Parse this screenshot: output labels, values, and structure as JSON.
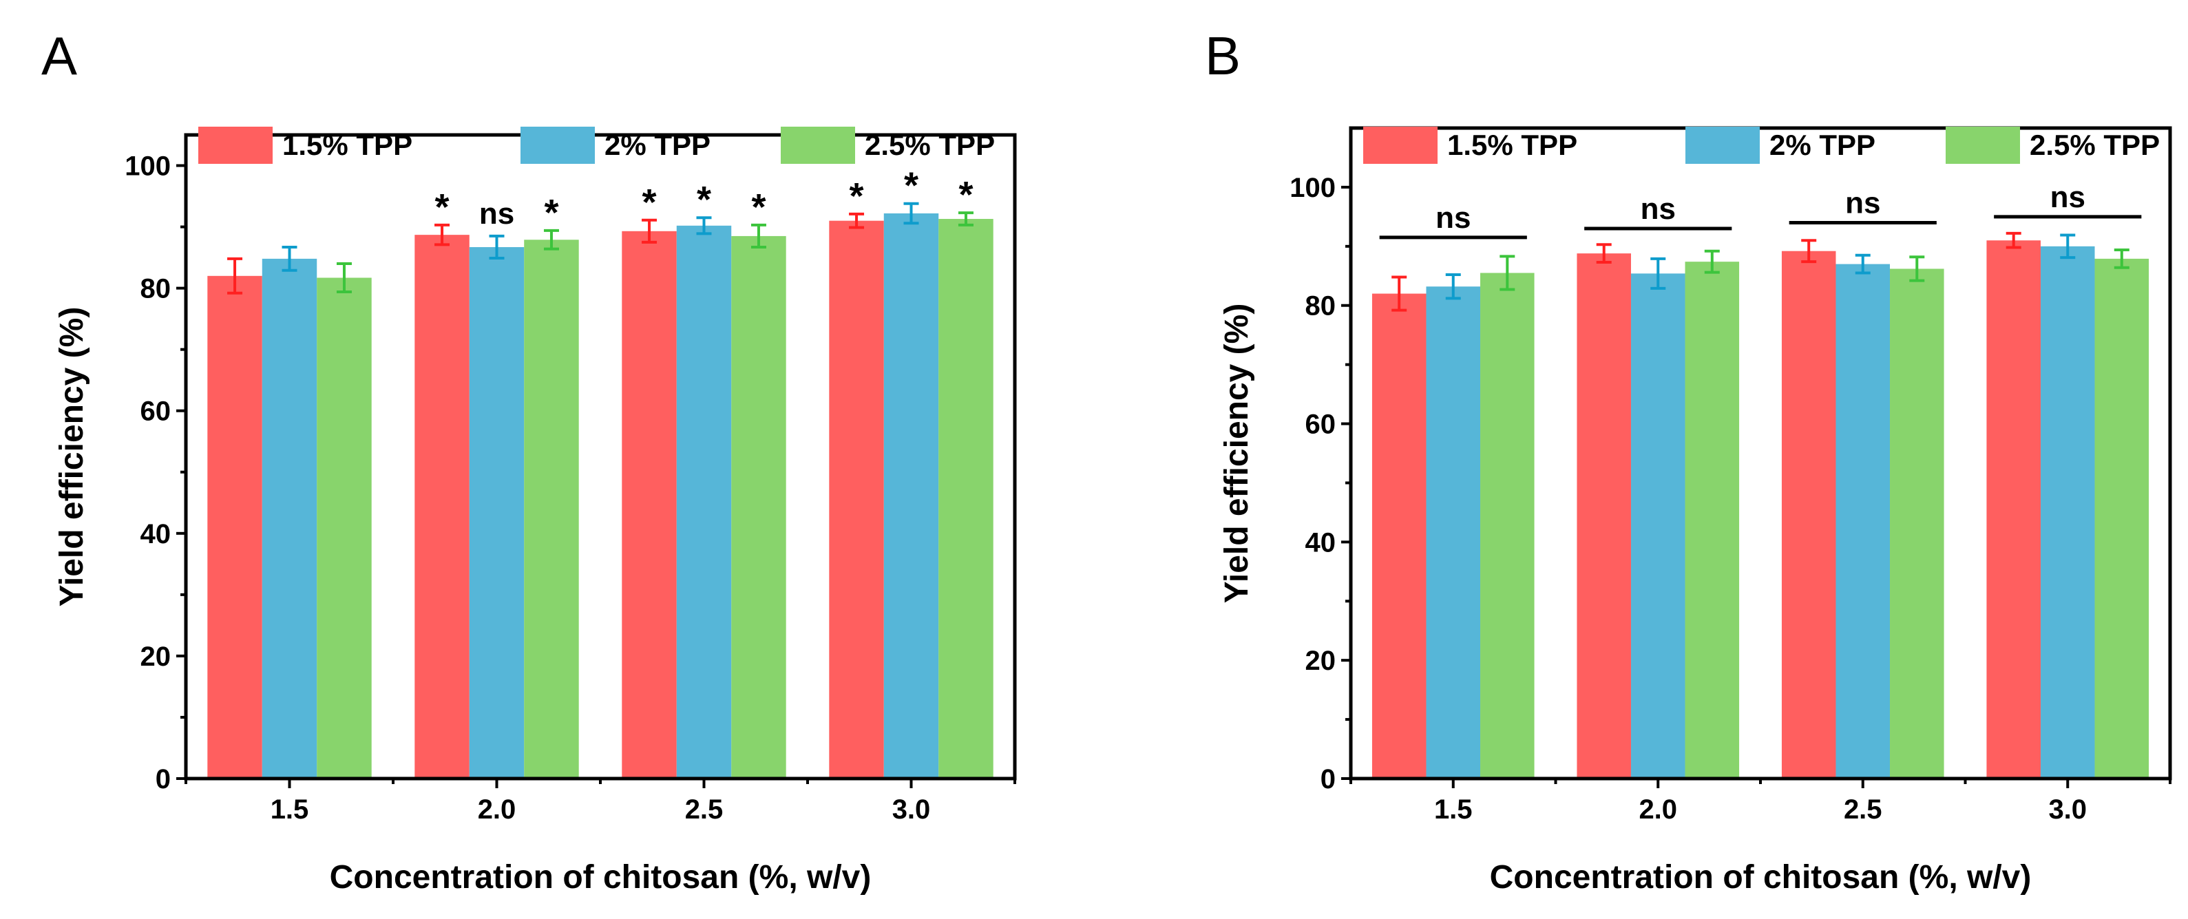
{
  "chart_data": [
    {
      "panel_label": "A",
      "type": "bar",
      "xlabel": "Concentration of chitosan (%, w/v)",
      "ylabel": "Yield efficiency (%)",
      "categories": [
        "1.5",
        "2.0",
        "2.5",
        "3.0"
      ],
      "x": [
        1.5,
        2.0,
        2.5,
        3.0
      ],
      "xlim": [
        1.25,
        3.25
      ],
      "ylim": [
        0,
        105
      ],
      "yticks": [
        0,
        20,
        40,
        60,
        80,
        100
      ],
      "ytick_labels": [
        "0",
        "20",
        "40",
        "60",
        "80",
        "100"
      ],
      "legend_position": "top-left",
      "series": [
        {
          "name": "1.5% TPP",
          "color": "#ff5f5f",
          "err_color": "#ff2020",
          "values": [
            82.0,
            88.7,
            89.3,
            91.0
          ],
          "errors": [
            2.8,
            1.6,
            1.8,
            1.1
          ],
          "annotations": [
            "",
            "*",
            "*",
            "*"
          ]
        },
        {
          "name": "2% TPP",
          "color": "#56b6d8",
          "err_color": "#0e9ccc",
          "values": [
            84.8,
            86.7,
            90.2,
            92.2
          ],
          "errors": [
            1.9,
            1.8,
            1.3,
            1.6
          ],
          "annotations": [
            "",
            "ns",
            "*",
            "*"
          ]
        },
        {
          "name": "2.5% TPP",
          "color": "#88d46c",
          "err_color": "#3cc43c",
          "values": [
            81.7,
            87.9,
            88.5,
            91.3
          ],
          "errors": [
            2.3,
            1.5,
            1.8,
            1.0
          ],
          "annotations": [
            "",
            "*",
            "*",
            "*"
          ]
        }
      ],
      "group_annotations": []
    },
    {
      "panel_label": "B",
      "type": "bar",
      "xlabel": "Concentration of chitosan (%, w/v)",
      "ylabel": "Yield efficiency (%)",
      "categories": [
        "1.5",
        "2.0",
        "2.5",
        "3.0"
      ],
      "x": [
        1.5,
        2.0,
        2.5,
        3.0
      ],
      "xlim": [
        1.25,
        3.25
      ],
      "ylim": [
        0,
        110
      ],
      "yticks": [
        0,
        20,
        40,
        60,
        80,
        100
      ],
      "ytick_labels": [
        "0",
        "20",
        "40",
        "60",
        "80",
        "100"
      ],
      "legend_position": "top-left",
      "series": [
        {
          "name": "1.5% TPP",
          "color": "#ff5f5f",
          "err_color": "#ff2020",
          "values": [
            82.0,
            88.8,
            89.2,
            91.0
          ],
          "errors": [
            2.8,
            1.5,
            1.8,
            1.2
          ],
          "annotations": [
            "",
            "",
            "",
            ""
          ]
        },
        {
          "name": "2% TPP",
          "color": "#56b6d8",
          "err_color": "#0e9ccc",
          "values": [
            83.2,
            85.4,
            87.0,
            90.0
          ],
          "errors": [
            2.0,
            2.5,
            1.5,
            1.9
          ],
          "annotations": [
            "",
            "",
            "",
            ""
          ]
        },
        {
          "name": "2.5% TPP",
          "color": "#88d46c",
          "err_color": "#3cc43c",
          "values": [
            85.5,
            87.4,
            86.2,
            87.9
          ],
          "errors": [
            2.8,
            1.8,
            2.0,
            1.5
          ],
          "annotations": [
            "",
            "",
            "",
            ""
          ]
        }
      ],
      "group_annotations": [
        {
          "text": "ns",
          "level": 91.5
        },
        {
          "text": "ns",
          "level": 93.0
        },
        {
          "text": "ns",
          "level": 94.0
        },
        {
          "text": "ns",
          "level": 95.0
        }
      ]
    }
  ]
}
